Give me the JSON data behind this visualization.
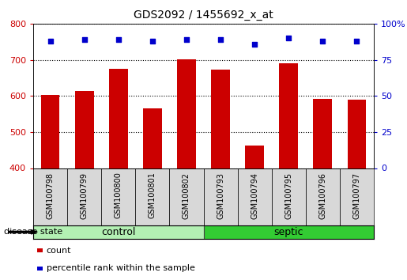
{
  "title": "GDS2092 / 1455692_x_at",
  "samples": [
    "GSM100798",
    "GSM100799",
    "GSM100800",
    "GSM100801",
    "GSM100802",
    "GSM100793",
    "GSM100794",
    "GSM100795",
    "GSM100796",
    "GSM100797"
  ],
  "counts": [
    603,
    613,
    675,
    565,
    702,
    672,
    462,
    690,
    592,
    590
  ],
  "percentile_ranks": [
    88,
    89,
    89,
    88,
    89,
    89,
    86,
    90,
    88,
    88
  ],
  "groups": [
    "control",
    "control",
    "control",
    "control",
    "control",
    "septic",
    "septic",
    "septic",
    "septic",
    "septic"
  ],
  "bar_color": "#cc0000",
  "dot_color": "#0000cc",
  "ymin": 400,
  "ymax": 800,
  "yticks": [
    400,
    500,
    600,
    700,
    800
  ],
  "y2min": 0,
  "y2max": 100,
  "y2ticks": [
    0,
    25,
    50,
    75,
    100
  ],
  "control_color": "#b3f0b3",
  "septic_color": "#33cc33",
  "label_color_left": "#cc0000",
  "label_color_right": "#0000cc",
  "legend_count_label": "count",
  "legend_pct_label": "percentile rank within the sample",
  "disease_state_label": "disease state",
  "control_label": "control",
  "septic_label": "septic"
}
